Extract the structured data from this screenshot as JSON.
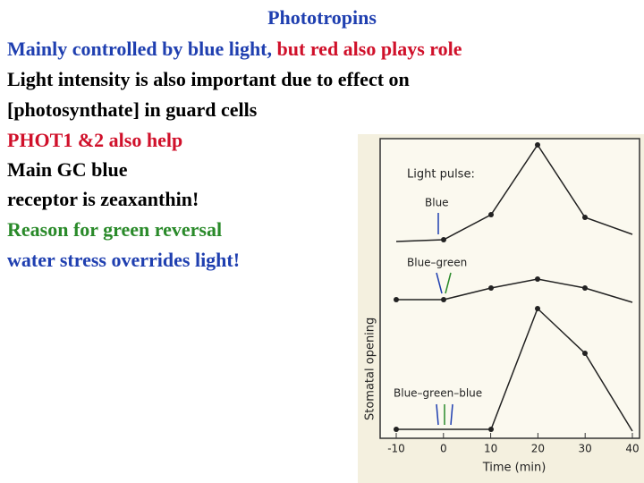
{
  "title": "Phototropins",
  "lines": [
    {
      "parts": [
        "Mainly controlled by blue light,",
        " but red also plays role"
      ]
    },
    {
      "parts": [
        "Light intensity is also important due to effect on"
      ]
    },
    {
      "parts": [
        "[photosynthate] in guard cells"
      ]
    },
    {
      "parts": [
        "PHOT1 &2 also help"
      ]
    },
    {
      "parts": [
        "Main GC blue"
      ]
    },
    {
      "parts": [
        "receptor is zeaxanthin!"
      ]
    },
    {
      "parts": [
        "Reason for green reversal"
      ]
    },
    {
      "parts": [
        "water stress overrides light!"
      ]
    }
  ],
  "figure": {
    "y_label": "Stomatal opening",
    "x_label": "Time (min)",
    "panel_title": "Light pulse:",
    "panels": [
      "Blue",
      "Blue–green",
      "Blue–green–blue"
    ],
    "xticks": [
      -10,
      0,
      10,
      20,
      30,
      40
    ]
  }
}
